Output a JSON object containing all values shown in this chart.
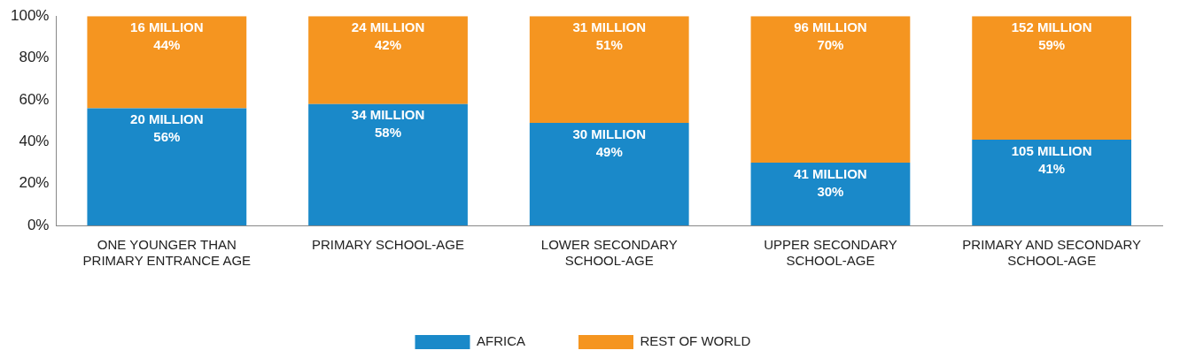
{
  "chart_data": {
    "type": "bar",
    "stacked": true,
    "categories": [
      "ONE YOUNGER THAN\nPRIMARY ENTRANCE AGE",
      "PRIMARY SCHOOL-AGE",
      "LOWER SECONDARY\nSCHOOL-AGE",
      "UPPER SECONDARY\nSCHOOL-AGE",
      "PRIMARY AND SECONDARY\nSCHOOL-AGE"
    ],
    "series": [
      {
        "name": "AFRICA",
        "color": "#1a89c9",
        "values": [
          56,
          58,
          49,
          30,
          41
        ],
        "value_labels": [
          "20 MILLION\n56%",
          "34 MILLION\n58%",
          "30 MILLION\n49%",
          "41 MILLION\n30%",
          "105 MILLION\n41%"
        ]
      },
      {
        "name": "REST OF WORLD",
        "color": "#f59520",
        "values": [
          44,
          42,
          51,
          70,
          59
        ],
        "value_labels": [
          "16 MILLION\n44%",
          "24 MILLION\n42%",
          "31 MILLION\n51%",
          "96 MILLION\n70%",
          "152 MILLION\n59%"
        ]
      }
    ],
    "ylim": [
      0,
      100
    ],
    "yticks": [
      {
        "value": 0,
        "label": "0%"
      },
      {
        "value": 20,
        "label": "20%"
      },
      {
        "value": 40,
        "label": "40%"
      },
      {
        "value": 60,
        "label": "60%"
      },
      {
        "value": 80,
        "label": "80%"
      },
      {
        "value": 100,
        "label": "100%"
      }
    ],
    "grid": false,
    "legend": "bottom"
  }
}
